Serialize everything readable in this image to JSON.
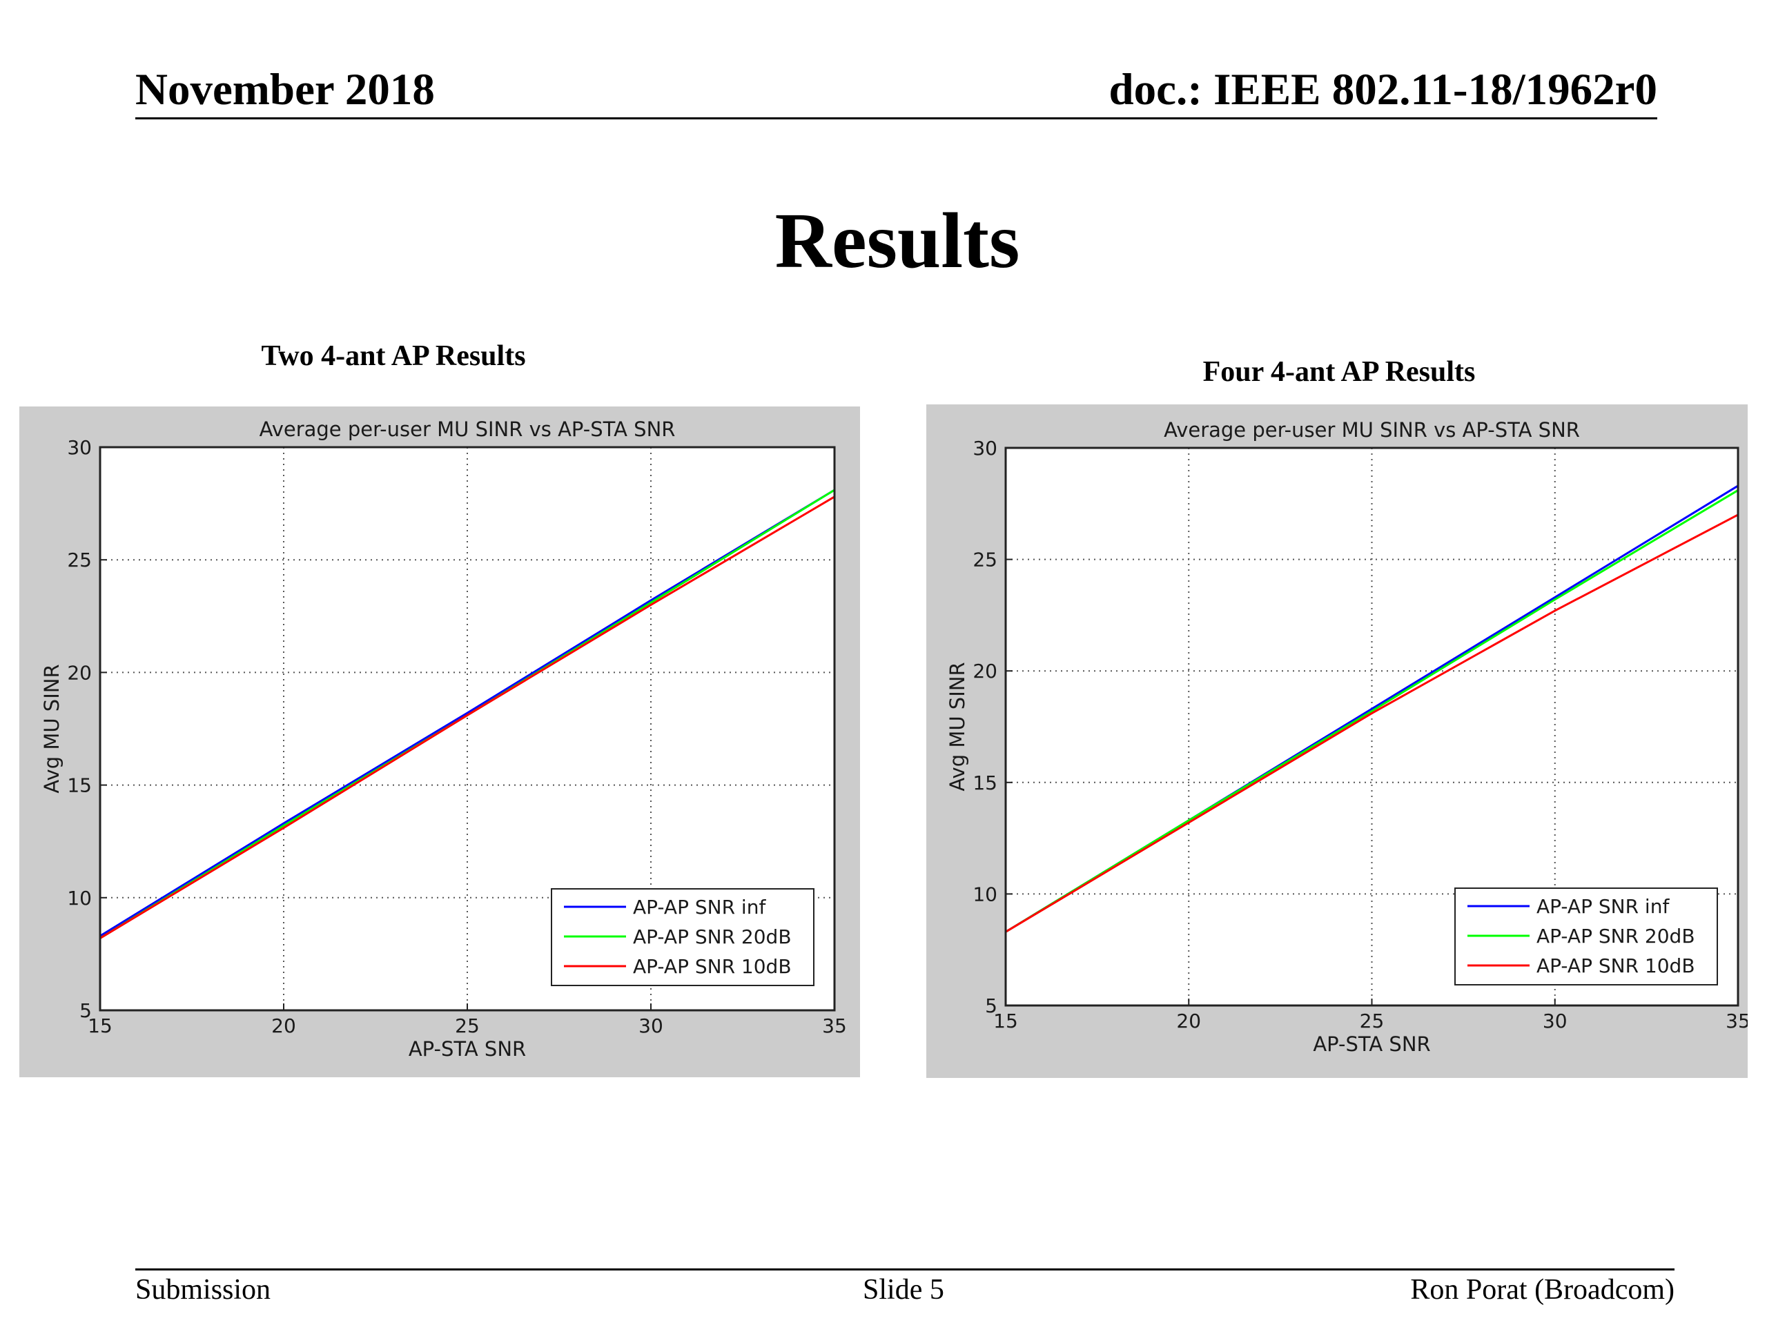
{
  "header": {
    "date": "November 2018",
    "doc": "doc.: IEEE 802.11-18/1962r0"
  },
  "slide_title": "Results",
  "captions": {
    "left": "Two 4-ant AP Results",
    "right": "Four 4-ant AP Results"
  },
  "footer": {
    "left": "Submission",
    "center": "Slide 5",
    "right": "Ron Porat (Broadcom)"
  },
  "colors": {
    "panel_bg": "#cccccc",
    "series_inf": "#0000ff",
    "series_20dB": "#00ff00",
    "series_10dB": "#ff0000"
  },
  "chart_data": [
    {
      "type": "line",
      "title": "Average per-user MU SINR vs AP-STA SNR",
      "xlabel": "AP-STA SNR",
      "ylabel": "Avg MU SINR",
      "xlim": [
        15,
        35
      ],
      "ylim": [
        5,
        30
      ],
      "xticks": [
        15,
        20,
        25,
        30,
        35
      ],
      "yticks": [
        5,
        10,
        15,
        20,
        25,
        30
      ],
      "grid": true,
      "legend_position": "bottom-right",
      "series": [
        {
          "name": "AP-AP SNR inf",
          "color": "#0000ff",
          "x": [
            15,
            20,
            25,
            30,
            35
          ],
          "y": [
            8.3,
            13.3,
            18.2,
            23.2,
            28.1
          ]
        },
        {
          "name": "AP-AP SNR 20dB",
          "color": "#00ff00",
          "x": [
            15,
            20,
            25,
            30,
            35
          ],
          "y": [
            8.2,
            13.2,
            18.1,
            23.1,
            28.1
          ]
        },
        {
          "name": "AP-AP SNR 10dB",
          "color": "#ff0000",
          "x": [
            15,
            20,
            25,
            30,
            35
          ],
          "y": [
            8.2,
            13.1,
            18.1,
            23.0,
            27.8
          ]
        }
      ]
    },
    {
      "type": "line",
      "title": "Average per-user MU SINR vs AP-STA SNR",
      "xlabel": "AP-STA SNR",
      "ylabel": "Avg MU SINR",
      "xlim": [
        15,
        35
      ],
      "ylim": [
        5,
        30
      ],
      "xticks": [
        15,
        20,
        25,
        30,
        35
      ],
      "yticks": [
        5,
        10,
        15,
        20,
        25,
        30
      ],
      "grid": true,
      "legend_position": "bottom-right",
      "series": [
        {
          "name": "AP-AP SNR inf",
          "color": "#0000ff",
          "x": [
            15,
            20,
            25,
            30,
            35
          ],
          "y": [
            8.3,
            13.3,
            18.3,
            23.3,
            28.3
          ]
        },
        {
          "name": "AP-AP SNR 20dB",
          "color": "#00ff00",
          "x": [
            15,
            20,
            25,
            30,
            35
          ],
          "y": [
            8.3,
            13.3,
            18.2,
            23.2,
            28.1
          ]
        },
        {
          "name": "AP-AP SNR 10dB",
          "color": "#ff0000",
          "x": [
            15,
            20,
            25,
            30,
            35
          ],
          "y": [
            8.3,
            13.2,
            18.1,
            22.7,
            27.0
          ]
        }
      ]
    }
  ]
}
